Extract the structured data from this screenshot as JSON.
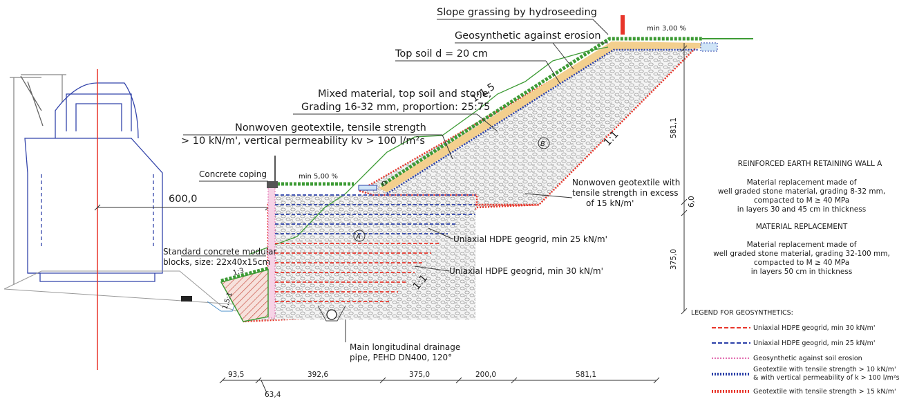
{
  "labels": {
    "hydroseeding": "Slope grassing by hydroseeding",
    "erosion_geosynthetic": "Geosynthetic against erosion",
    "topsoil": "Top soil d = 20 cm",
    "mixed_1": "Mixed material, top soil and stone,",
    "mixed_2": "Grading 16-32 mm, proportion: 25:75",
    "nonwoven_1": "Nonwoven geotextile, tensile strength",
    "nonwoven_2": "> 10 kN/m', vertical permeability kv > 100 l/m²s",
    "coping": "Concrete coping",
    "min5": "min 5,00 %",
    "min3": "min 3,00 %",
    "slope_upper": "1:1,5",
    "slope_right": "1:1",
    "slope_wall": "1:1",
    "slope_left": "1:3",
    "slope_left2": "1,5:1",
    "zone_a": "A",
    "zone_b": "B",
    "nonwoven15_1": "Nonwoven geotextile with",
    "nonwoven15_2": "tensile strength in excess",
    "nonwoven15_3": "of 15 kN/m'",
    "geogrid25": "Uniaxial HDPE geogrid, min 25 kN/m'",
    "geogrid30": "Uniaxial HDPE geogrid, min 30 kN/m'",
    "blocks_1": "Standard concrete modular",
    "blocks_2": "blocks, size: 22x40x15cm",
    "drain_1": "Main longitudinal drainage",
    "drain_2": "pipe, PEHD DN400, 120°",
    "dim_600": "600,0",
    "dim_581v": "581,1",
    "dim_60": "6,0",
    "dim_375v": "375,0",
    "wall_a_title": "REINFORCED EARTH RETAINING WALL A",
    "wall_a_1": "Material replacement made of",
    "wall_a_2": "well graded stone material, grading 8-32 mm,",
    "wall_a_3": "compacted to M ≥ 40 MPa",
    "wall_a_4": "in layers 30 and 45 cm in thickness",
    "repl_title": "MATERIAL REPLACEMENT",
    "repl_1": "Material replacement made of",
    "repl_2": "well graded stone material, grading  32-100 mm,",
    "repl_3": "compacted to M ≥ 40 MPa",
    "repl_4": "in layers 50 cm in thickness"
  },
  "legend": {
    "title": "LEGEND FOR GEOSYNTHETICS:",
    "items": [
      {
        "label": "Uniaxial HDPE geogrid, min 30 kN/m'",
        "color": "#e8352a"
      },
      {
        "label": "Uniaxial HDPE geogrid, min 25 kN/m'",
        "color": "#2a3fa8"
      },
      {
        "label": "Geosynthetic against soil erosion",
        "color": "#e26fb0"
      },
      {
        "label": "Geotextile with tensile strength  > 10 kN/m'",
        "label2": "& with vertical permeability of k > 100 l/m²s",
        "color": "#2a3fa8"
      },
      {
        "label": "Geotextile with tensile strength > 15 kN/m'",
        "color": "#e8352a"
      }
    ]
  },
  "bottom_dims": [
    "93,5",
    "392,6",
    "375,0",
    "200,0",
    "581,1",
    "63,4"
  ],
  "colors": {
    "red": "#e8352a",
    "blue": "#2a3fa8",
    "green": "#3d9b35",
    "sand": "#f3cf8e",
    "pink": "#e26fb0"
  }
}
